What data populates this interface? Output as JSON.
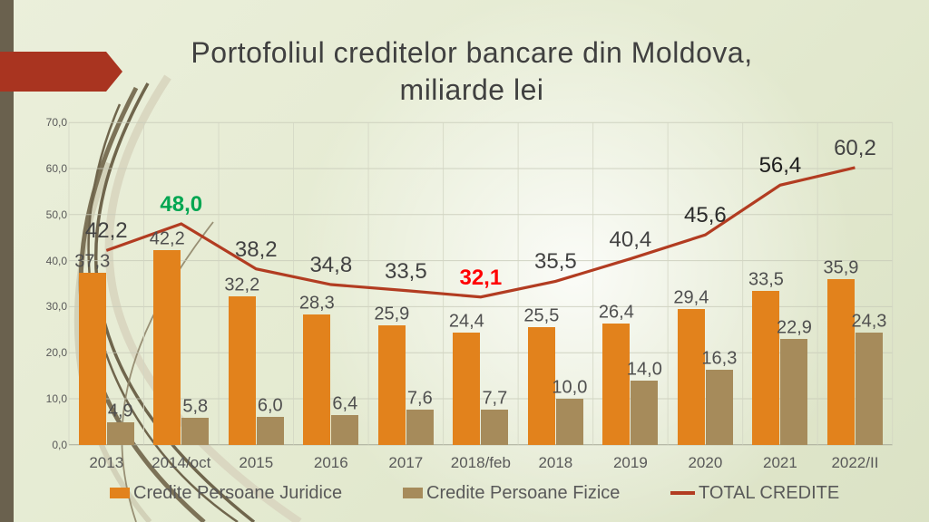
{
  "title": {
    "line1": "Portofoliul creditelor bancare din Moldova,",
    "line2": "miliarde lei"
  },
  "chart_data": {
    "type": "bar+line-combo",
    "title": "Portofoliul creditelor bancare din Moldova, miliarde lei",
    "categories": [
      "2013",
      "2014/oct",
      "2015",
      "2016",
      "2017",
      "2018/feb",
      "2018",
      "2019",
      "2020",
      "2021",
      "2022/II"
    ],
    "series": [
      {
        "name": "Credite Persoane Juridice",
        "type": "bar",
        "color": "#e2821c",
        "values": [
          37.3,
          42.2,
          32.2,
          28.3,
          25.9,
          24.4,
          25.5,
          26.4,
          29.4,
          33.5,
          35.9
        ]
      },
      {
        "name": "Credite Persoane Fizice",
        "type": "bar",
        "color": "#a68b5b",
        "values": [
          4.9,
          5.8,
          6.0,
          6.4,
          7.6,
          7.7,
          10.0,
          14.0,
          16.3,
          22.9,
          24.3
        ]
      },
      {
        "name": "TOTAL CREDITE",
        "type": "line",
        "color": "#b23c21",
        "values": [
          42.2,
          48.0,
          38.2,
          34.8,
          33.5,
          32.1,
          35.5,
          40.4,
          45.6,
          56.4,
          60.2
        ]
      }
    ],
    "decimal_separator": ",",
    "ylim": [
      0,
      70
    ],
    "ytick_step": 10,
    "ytick_labels": [
      "0,0",
      "10,0",
      "20,0",
      "30,0",
      "40,0",
      "50,0",
      "60,0",
      "70,0"
    ],
    "grid": true,
    "legend_position": "bottom",
    "total_label_emphasis": {
      "1": {
        "color": "#00a651",
        "bold": true
      },
      "5": {
        "color": "#ff0000",
        "bold": true
      },
      "8": {
        "color": "#2b2b2b",
        "bold": false
      },
      "9": {
        "color": "#1d1d1d",
        "bold": false
      }
    }
  },
  "legend": {
    "items": [
      {
        "label": "Credite Persoane Juridice",
        "swatch": "square",
        "color": "#e2821c"
      },
      {
        "label": "Credite Persoane Fizice",
        "swatch": "square",
        "color": "#a68b5b"
      },
      {
        "label": "TOTAL CREDITE",
        "swatch": "line",
        "color": "#b23c21"
      }
    ]
  },
  "colors": {
    "background": "#e5ebd2",
    "side_strip": "#6a614e",
    "arrow": "#a93420",
    "title_text": "#404040",
    "axis_text": "#595959",
    "gridline": "#c7cab8"
  }
}
